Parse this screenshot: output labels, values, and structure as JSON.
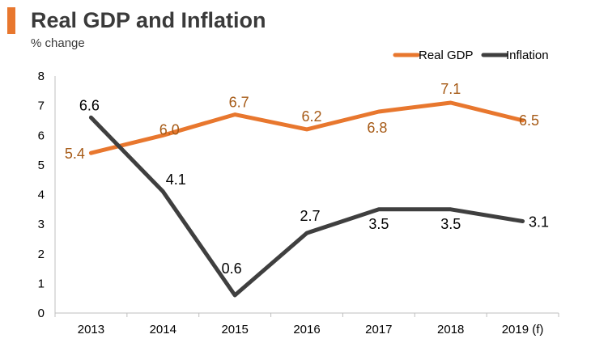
{
  "header": {
    "title": "Real GDP and Inflation",
    "subtitle": "% change"
  },
  "colors": {
    "gdp": "#e8772e",
    "inflation": "#3f3f3f",
    "gdp_label": "#a65a16",
    "axis": "#bfbfbf"
  },
  "chart_data": {
    "type": "line",
    "title": "Real GDP and Inflation",
    "ylabel": "% change",
    "xlabel": "",
    "categories": [
      "2013",
      "2014",
      "2015",
      "2016",
      "2017",
      "2018",
      "2019 (f)"
    ],
    "ylim": [
      0,
      8
    ],
    "yticks": [
      0,
      1,
      2,
      3,
      4,
      5,
      6,
      7,
      8
    ],
    "legend_position": "top-right",
    "grid": false,
    "series": [
      {
        "name": "Real GDP",
        "key": "gdp",
        "values": [
          5.4,
          6.0,
          6.7,
          6.2,
          6.8,
          7.1,
          6.5
        ],
        "labels": [
          "5.4",
          "6.0",
          "6.7",
          "6.2",
          "6.8",
          "7.1",
          "6.5"
        ]
      },
      {
        "name": "Inflation",
        "key": "inflation",
        "values": [
          6.6,
          4.1,
          0.6,
          2.7,
          3.5,
          3.5,
          3.1
        ],
        "labels": [
          "6.6",
          "4.1",
          "0.6",
          "2.7",
          "3.5",
          "3.5",
          "3.1"
        ]
      }
    ]
  }
}
